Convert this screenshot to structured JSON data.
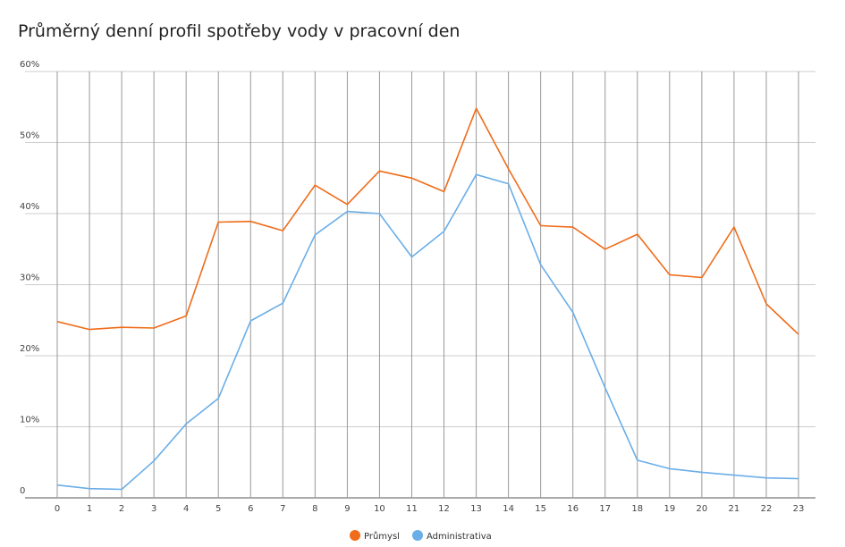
{
  "title": "Průměrný denní profil spotřeby vody v pracovní den",
  "chart_data": {
    "type": "line",
    "title": "Průměrný denní profil spotřeby vody v pracovní den",
    "x": [
      0,
      1,
      2,
      3,
      4,
      5,
      6,
      7,
      8,
      9,
      10,
      11,
      12,
      13,
      14,
      15,
      16,
      17,
      18,
      19,
      20,
      21,
      22,
      23
    ],
    "x_tick_labels": [
      "0",
      "1",
      "2",
      "3",
      "4",
      "5",
      "6",
      "7",
      "8",
      "9",
      "10",
      "11",
      "12",
      "13",
      "14",
      "15",
      "16",
      "17",
      "18",
      "19",
      "20",
      "21",
      "22",
      "23"
    ],
    "y_tick_values": [
      0,
      10,
      20,
      30,
      40,
      50,
      60
    ],
    "y_tick_labels": [
      "0",
      "10%",
      "20%",
      "30%",
      "40%",
      "50%",
      "60%"
    ],
    "ylim": [
      0,
      60
    ],
    "grid": true,
    "legend_position": "bottom",
    "series": [
      {
        "name": "Průmysl",
        "color": "#ef6c1a",
        "values": [
          24.8,
          23.7,
          24.0,
          23.9,
          25.6,
          38.8,
          38.9,
          37.6,
          44.0,
          41.3,
          46.0,
          45.0,
          43.1,
          54.8,
          46.3,
          38.3,
          38.1,
          35.0,
          37.1,
          31.4,
          31.0,
          38.1,
          27.3,
          23.0
        ]
      },
      {
        "name": "Administrativa",
        "color": "#6aaee8",
        "values": [
          1.8,
          1.3,
          1.2,
          5.2,
          10.4,
          14.0,
          24.9,
          27.4,
          37.0,
          40.3,
          40.0,
          33.9,
          37.5,
          45.5,
          44.2,
          32.8,
          26.1,
          15.5,
          5.3,
          4.1,
          3.6,
          3.2,
          2.8,
          2.7
        ]
      }
    ]
  }
}
